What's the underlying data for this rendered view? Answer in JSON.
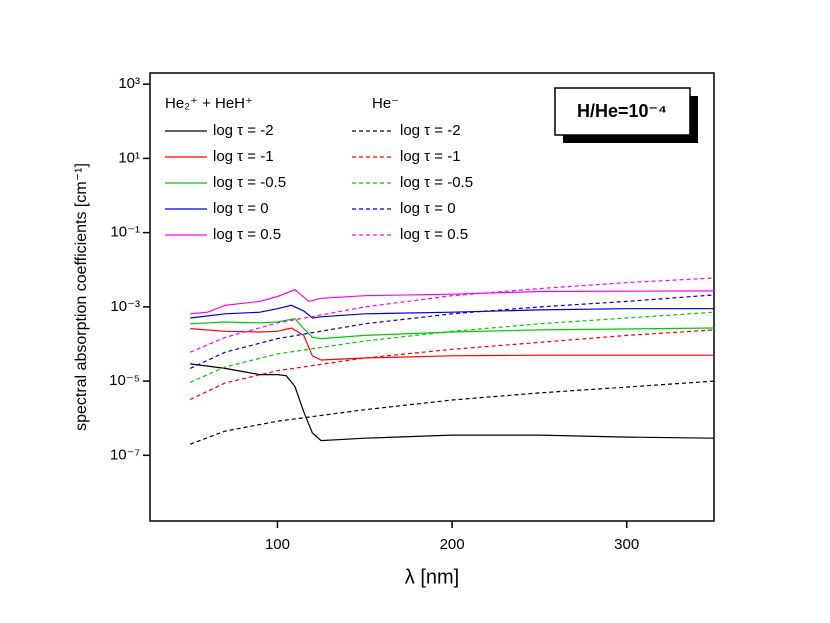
{
  "chart_data": {
    "type": "line",
    "xlabel": "λ [nm]",
    "ylabel": "spectral absorption coefficients [cm⁻¹]",
    "annotation": "H/He=10⁻⁴",
    "legend_titles": [
      "He₂⁺ + HeH⁺",
      "He⁻"
    ],
    "ylog": true,
    "grid": false,
    "xlim": [
      27,
      350
    ],
    "xticks": [
      100,
      200,
      300
    ],
    "ylim": [
      1.7e-09,
      2000
    ],
    "yticks": [
      {
        "value": 1000,
        "label": "10³"
      },
      {
        "value": 10,
        "label": "10¹"
      },
      {
        "value": 0.1,
        "label": "10⁻¹"
      },
      {
        "value": 0.001,
        "label": "10⁻³"
      },
      {
        "value": 1e-05,
        "label": "10⁻⁵"
      },
      {
        "value": 1e-07,
        "label": "10⁻⁷"
      }
    ],
    "series": [
      {
        "name": "log τ = -2",
        "color": "#000000",
        "dashed": false,
        "x": [
          50,
          70,
          90,
          100,
          105,
          110,
          115,
          120,
          125,
          150,
          200,
          250,
          300,
          350
        ],
        "values": [
          2.9e-05,
          2.2e-05,
          1.5e-05,
          1.5e-05,
          1.4e-05,
          7.2e-06,
          1.5e-06,
          4e-07,
          2.5e-07,
          2.9e-07,
          3.5e-07,
          3.5e-07,
          3.1e-07,
          2.9e-07
        ]
      },
      {
        "name": "log τ = -1",
        "color": "#ff0000",
        "dashed": false,
        "x": [
          50,
          70,
          90,
          100,
          108,
          115,
          120,
          125,
          150,
          200,
          250,
          350
        ],
        "values": [
          0.00026,
          0.00022,
          0.00021,
          0.00022,
          0.00027,
          0.00017,
          4.8e-05,
          3.7e-05,
          4.2e-05,
          4.8e-05,
          5e-05,
          5e-05
        ]
      },
      {
        "name": "log τ = -0.5",
        "color": "#00cc00",
        "dashed": false,
        "x": [
          50,
          70,
          90,
          100,
          110,
          115,
          120,
          125,
          150,
          200,
          250,
          350
        ],
        "values": [
          0.00035,
          0.00039,
          0.00037,
          0.00039,
          0.00048,
          0.00026,
          0.00015,
          0.00014,
          0.00017,
          0.00021,
          0.00024,
          0.00027
        ]
      },
      {
        "name": "log τ = 0",
        "color": "#0000cc",
        "dashed": false,
        "x": [
          50,
          70,
          90,
          100,
          108,
          115,
          120,
          125,
          150,
          200,
          250,
          300,
          350
        ],
        "values": [
          0.0005,
          0.00065,
          0.00072,
          0.00089,
          0.0011,
          0.00078,
          0.0005,
          0.00054,
          0.00065,
          0.00072,
          0.00083,
          0.00089,
          0.00089
        ]
      },
      {
        "name": "log τ = 0.5",
        "color": "#ff00ff",
        "dashed": false,
        "x": [
          50,
          60,
          70,
          90,
          100,
          110,
          118,
          125,
          150,
          200,
          250,
          350
        ],
        "values": [
          0.00065,
          0.00072,
          0.0011,
          0.0014,
          0.0019,
          0.0029,
          0.0014,
          0.0017,
          0.002,
          0.0022,
          0.0026,
          0.0027
        ]
      },
      {
        "name": "log τ = -2",
        "color": "#000000",
        "dashed": true,
        "x": [
          50,
          70,
          100,
          150,
          200,
          250,
          300,
          350
        ],
        "values": [
          2e-07,
          4.5e-07,
          8.3e-07,
          1.7e-06,
          3.1e-06,
          4.8e-06,
          6.9e-06,
          1e-05
        ]
      },
      {
        "name": "log τ = -1",
        "color": "#ff0000",
        "dashed": true,
        "x": [
          50,
          70,
          100,
          150,
          200,
          250,
          300,
          350
        ],
        "values": [
          3.2e-06,
          8.9e-06,
          1.9e-05,
          4.2e-05,
          7.2e-05,
          0.00011,
          0.00017,
          0.00024
        ]
      },
      {
        "name": "log τ = -0.5",
        "color": "#00cc00",
        "dashed": true,
        "x": [
          50,
          70,
          100,
          150,
          200,
          250,
          300,
          350
        ],
        "values": [
          9.3e-06,
          2.4e-05,
          5.4e-05,
          0.00012,
          0.00022,
          0.00035,
          0.0005,
          0.00072
        ]
      },
      {
        "name": "log τ = 0",
        "color": "#0000cc",
        "dashed": true,
        "x": [
          50,
          70,
          100,
          150,
          200,
          250,
          300,
          350
        ],
        "values": [
          2.2e-05,
          6e-05,
          0.00014,
          0.00035,
          0.00065,
          0.001,
          0.0014,
          0.0021
        ]
      },
      {
        "name": "log τ = 0.5",
        "color": "#ff00ff",
        "dashed": true,
        "x": [
          50,
          70,
          100,
          150,
          200,
          250,
          300,
          350
        ],
        "values": [
          6e-05,
          0.00015,
          0.00037,
          0.001,
          0.002,
          0.0031,
          0.0045,
          0.006
        ]
      }
    ]
  }
}
